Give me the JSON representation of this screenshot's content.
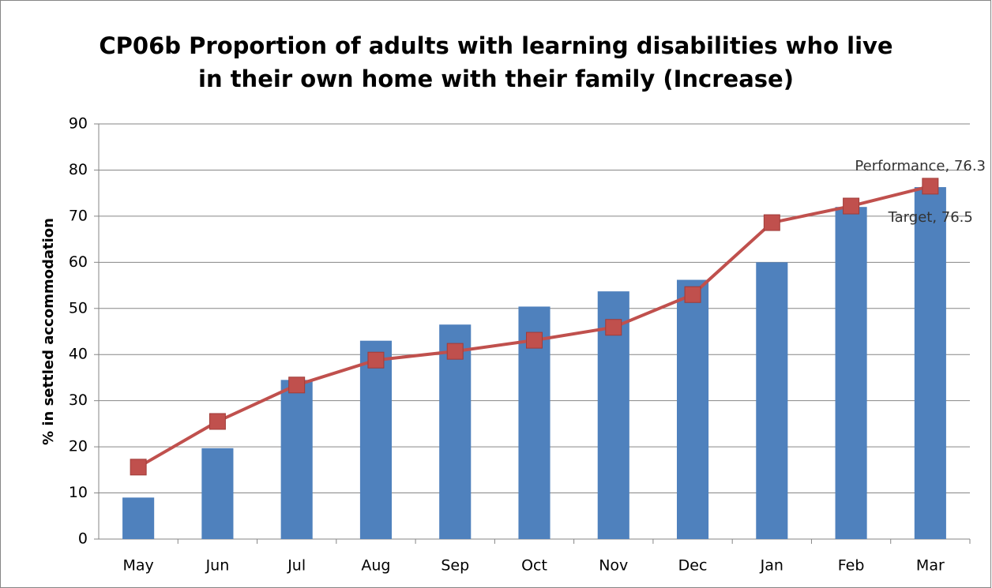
{
  "chart_data": {
    "type": "bar-line",
    "title": [
      "CP06b Proportion of adults with learning disabilities who live",
      "in their own home with their family (Increase)"
    ],
    "y_label": "% in settled accommodation",
    "categories": [
      "May",
      "Jun",
      "Jul",
      "Aug",
      "Sep",
      "Oct",
      "Nov",
      "Dec",
      "Jan",
      "Feb",
      "Mar"
    ],
    "series": [
      {
        "name": "Performance",
        "type": "bar",
        "color": "#4f81bd",
        "values": [
          9,
          19.7,
          34.5,
          43,
          46.5,
          50.4,
          53.7,
          56.2,
          60,
          72,
          76.3
        ],
        "value_labels": [
          null,
          null,
          null,
          null,
          null,
          null,
          null,
          null,
          null,
          null,
          "Performance, 76.3"
        ]
      },
      {
        "name": "Target",
        "type": "line",
        "color": "#c0504d",
        "values": [
          15.6,
          25.5,
          33.4,
          38.8,
          40.7,
          43.1,
          45.9,
          53,
          68.6,
          72.2,
          76.5
        ],
        "value_labels": [
          null,
          null,
          null,
          null,
          null,
          null,
          null,
          null,
          null,
          null,
          "Target, 76.5"
        ]
      }
    ],
    "ylim": [
      0,
      90
    ],
    "yticks": [
      0,
      10,
      20,
      30,
      40,
      50,
      60,
      70,
      80,
      90
    ],
    "grid": true
  }
}
